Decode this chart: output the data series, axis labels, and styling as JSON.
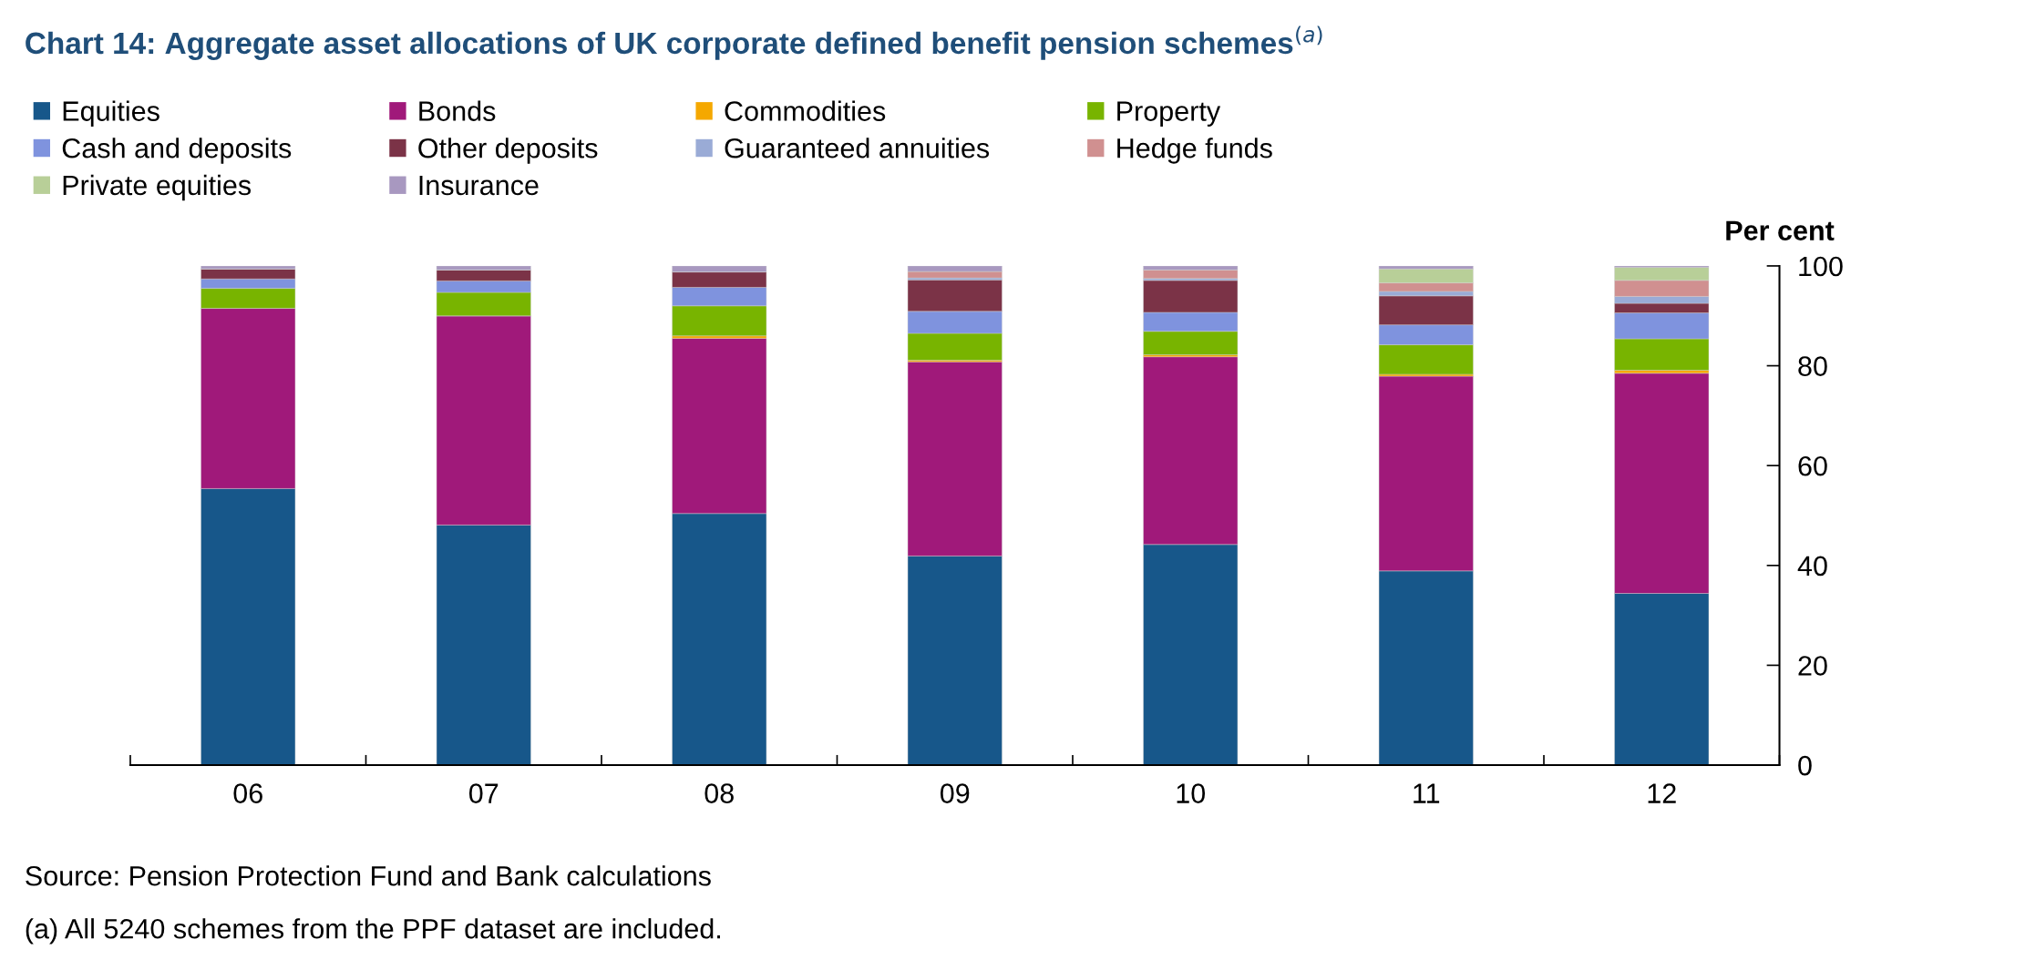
{
  "chart_data": {
    "type": "bar",
    "stacked": true,
    "title": "Chart 14: Aggregate asset allocations of UK corporate defined benefit pension schemes$^{(a)}$",
    "ylabel": "Per cent",
    "categories": [
      "06",
      "07",
      "08",
      "09",
      "10",
      "11",
      "12"
    ],
    "series": [
      {
        "name": "Equities",
        "color": "#17578a",
        "values": [
          55.4,
          48.1,
          50.4,
          41.9,
          44.2,
          38.9,
          34.4
        ]
      },
      {
        "name": "Bonds",
        "color": "#a0197a",
        "values": [
          36.1,
          41.9,
          35.1,
          38.9,
          37.6,
          39.0,
          44.1
        ]
      },
      {
        "name": "Commodities",
        "color": "#f5a800",
        "values": [
          0,
          0,
          0.5,
          0.3,
          0.4,
          0.4,
          0.6
        ]
      },
      {
        "name": "Property",
        "color": "#78b400",
        "values": [
          4.0,
          4.7,
          6.0,
          5.4,
          4.7,
          5.9,
          6.3
        ]
      },
      {
        "name": "Cash and deposits",
        "color": "#7f93de",
        "values": [
          1.9,
          2.3,
          3.7,
          4.4,
          3.8,
          4.0,
          5.2
        ]
      },
      {
        "name": "Other deposits",
        "color": "#7b3347",
        "values": [
          2.0,
          2.2,
          3.1,
          6.3,
          6.4,
          5.8,
          1.9
        ]
      },
      {
        "name": "Guaranteed annuities",
        "color": "#9aabd6",
        "values": [
          0,
          0,
          0,
          0.4,
          0.4,
          0.9,
          1.4
        ]
      },
      {
        "name": "Hedge funds",
        "color": "#d09090",
        "values": [
          0,
          0,
          0,
          1.3,
          1.7,
          1.7,
          3.2
        ]
      },
      {
        "name": "Private equities",
        "color": "#b8cf98",
        "values": [
          0,
          0,
          0,
          0,
          0,
          2.8,
          2.6
        ]
      },
      {
        "name": "Insurance",
        "color": "#a898c0",
        "values": [
          0.6,
          0.8,
          1.2,
          1.1,
          0.8,
          0.6,
          0.3
        ]
      }
    ],
    "ylim": [
      0,
      100
    ],
    "yticks": [
      0,
      20,
      40,
      60,
      80,
      100
    ],
    "grid": false,
    "legend": "top",
    "annotations": [
      "Source: Pension Protection Fund and Bank calculations",
      "(a) All 5240 schemes from the PPF dataset are included."
    ]
  }
}
